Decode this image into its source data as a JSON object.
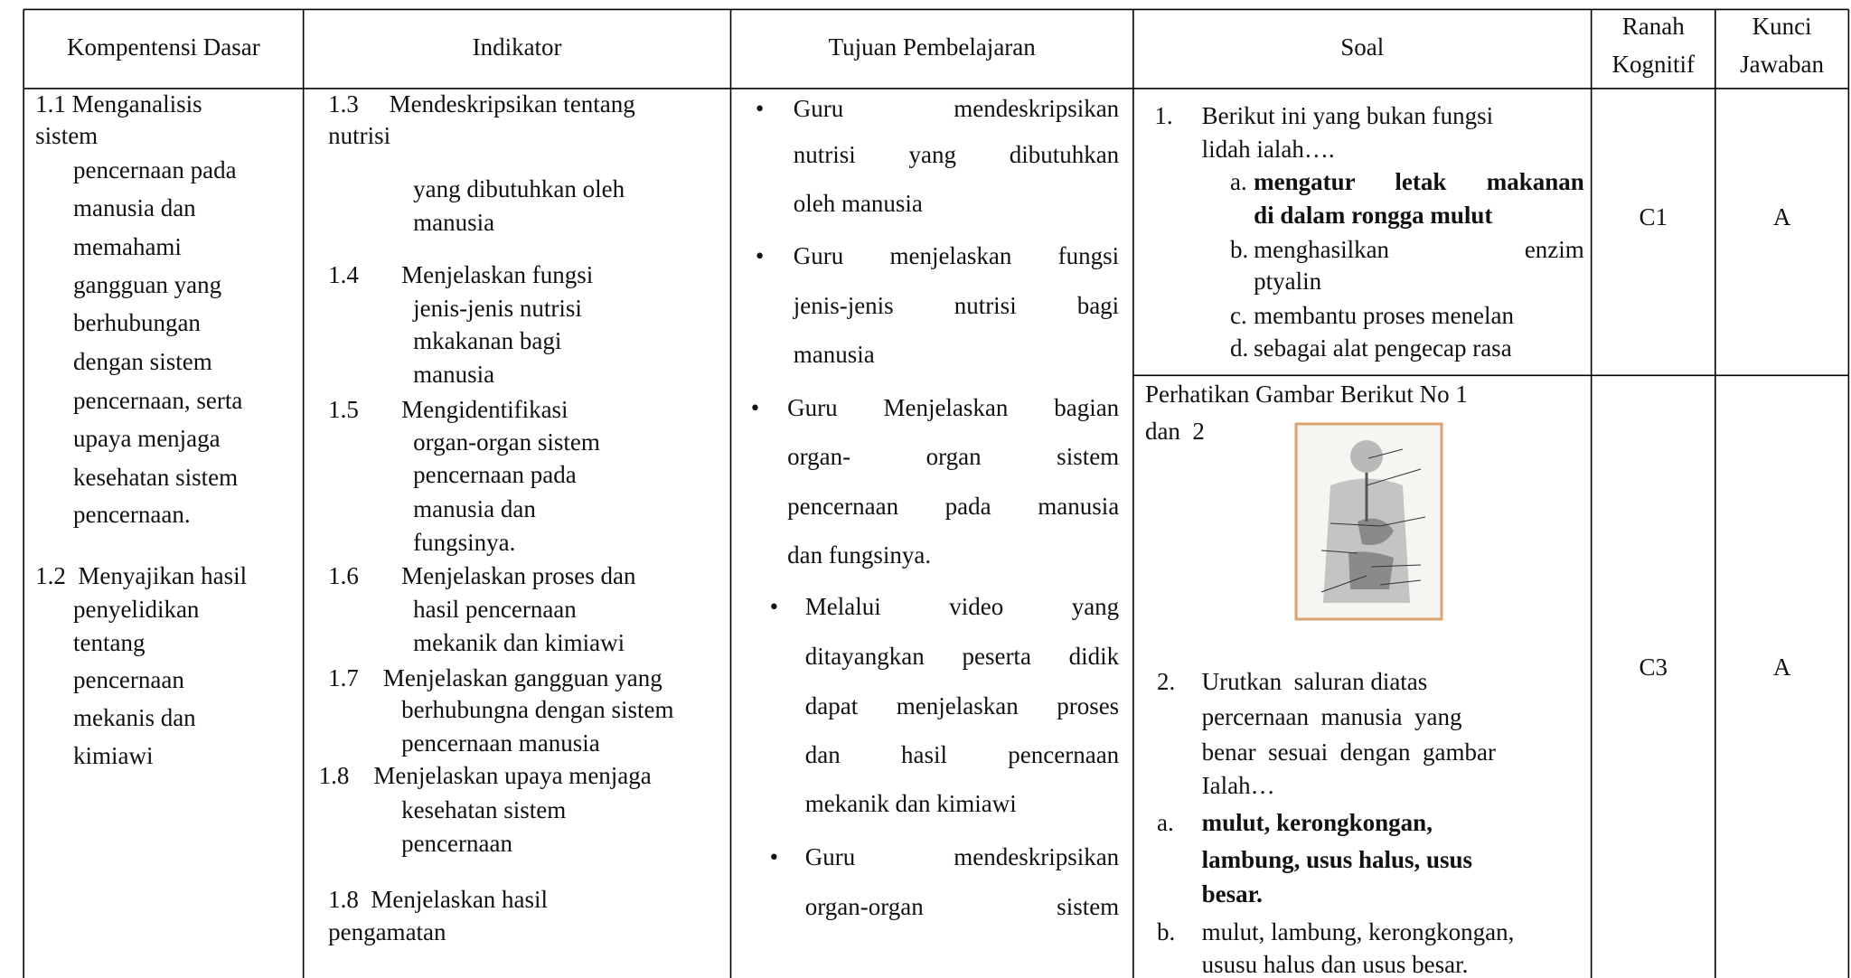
{
  "table": {
    "header": [
      "Kompentensi Dasar",
      "Indikator",
      "Tujuan Pembelajaran",
      "Soal",
      [
        "Ranah",
        "Kognitif"
      ],
      [
        "Kunci",
        "Jawaban"
      ]
    ],
    "kompetensi_dasar": [
      "1.1 Menganalisis",
      "sistem",
      "pencernaan pada",
      "manusia dan",
      "memahami",
      "gangguan yang",
      "berhubungan",
      "dengan sistem",
      "pencernaan, serta",
      "upaya menjaga",
      "kesehatan sistem",
      "pencernaan.",
      "1.2  Menyajikan hasil",
      "penyelidikan",
      "tentang",
      "pencernaan",
      "mekanis dan",
      "kimiawi"
    ],
    "indikator": [
      "1.3     Mendeskripsikan tentang",
      "nutrisi",
      "yang dibutuhkan oleh",
      "manusia",
      "1.4       Menjelaskan fungsi",
      "jenis-jenis nutrisi",
      "mkakanan bagi",
      "manusia",
      "1.5       Mengidentifikasi",
      "organ-organ sistem",
      "pencernaan pada",
      "manusia dan",
      "fungsinya.",
      "1.6       Menjelaskan proses dan",
      "hasil pencernaan",
      "mekanik dan kimiawi",
      "1.7    Menjelaskan gangguan yang",
      "berhubungna dengan sistem",
      "pencernaan manusia",
      "1.8    Menjelaskan upaya menjaga",
      "kesehatan sistem",
      "pencernaan",
      "1.8  Menjelaskan hasil",
      "pengamatan"
    ],
    "tujuan": [
      [
        "Guru mendeskripsikan",
        "nutrisi yang dibutuhkan",
        "oleh manusia"
      ],
      [
        "Guru menjelaskan fungsi",
        "jenis-jenis nutrisi bagi",
        "manusia"
      ],
      [
        "Guru Menjelaskan bagian",
        "organ- organ sistem",
        "pencernaan pada manusia",
        "dan fungsinya."
      ],
      [
        "Melalui video yang",
        "ditayangkan peserta didik",
        "dapat menjelaskan proses",
        "dan hasil pencernaan",
        "mekanik dan kimiawi"
      ],
      [
        "Guru mendeskripsikan",
        "organ-organ sistem"
      ]
    ],
    "soal": [
      {
        "number": "1.",
        "lines": [
          "Berikut ini yang bukan fungsi",
          "lidah ialah…."
        ],
        "options": [
          {
            "letter": "a.",
            "lines": [
              "mengatur letak makanan",
              "di dalam rongga mulut"
            ]
          },
          {
            "letter": "b.",
            "lines": [
              "menghasilkan enzim",
              "ptyalin"
            ]
          },
          {
            "letter": "c.",
            "lines": [
              "membantu proses menelan"
            ]
          },
          {
            "letter": "d.",
            "lines": [
              "sebagai alat pengecap rasa"
            ]
          }
        ]
      },
      {
        "intro": [
          "Perhatikan Gambar Berikut No 1",
          "dan  2"
        ],
        "number": "2.",
        "lines": [
          "Urutkan  saluran diatas",
          "percernaan  manusia  yang",
          "benar  sesuai  dengan  gambar",
          "Ialah…"
        ],
        "options": [
          {
            "letter": "a.",
            "lines": [
              "mulut, kerongkongan,",
              "lambung, usus halus, usus",
              "besar."
            ]
          },
          {
            "letter": "b.",
            "lines": [
              "mulut, lambung, kerongkongan,",
              "ususu halus dan usus besar."
            ]
          }
        ]
      }
    ],
    "ranah_kognitif": [
      "C1",
      "C3"
    ],
    "kunci_jawaban": [
      "A",
      "A"
    ]
  }
}
